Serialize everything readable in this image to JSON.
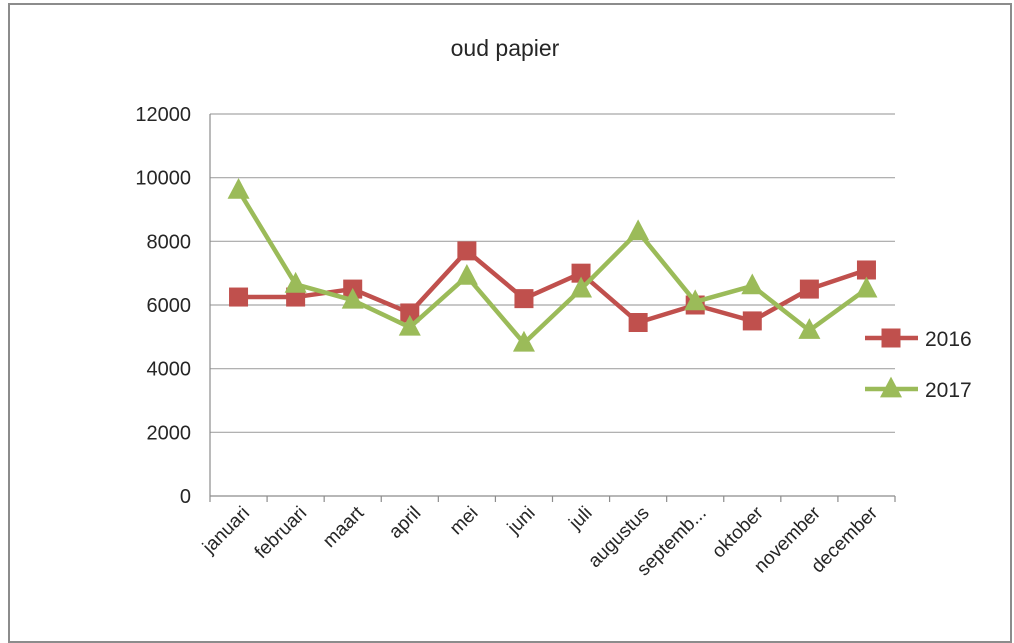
{
  "chart_data": {
    "type": "line",
    "title": "oud papier",
    "xlabel": "",
    "ylabel": "",
    "ylim": [
      0,
      12000
    ],
    "yticks": [
      "0",
      "2000",
      "4000",
      "6000",
      "8000",
      "10000",
      "12000"
    ],
    "categories": [
      "januari",
      "februari",
      "maart",
      "april",
      "mei",
      "juni",
      "juli",
      "augustus",
      "septemb...",
      "oktober",
      "november",
      "december"
    ],
    "series": [
      {
        "name": "2016",
        "marker": "square",
        "color": "#c0504d",
        "values": [
          6250,
          6250,
          6500,
          5750,
          7700,
          6200,
          7000,
          5450,
          6000,
          5500,
          6500,
          7100
        ]
      },
      {
        "name": "2017",
        "marker": "triangle",
        "color": "#9bbb59",
        "values": [
          9600,
          6650,
          6150,
          5300,
          6900,
          4800,
          6500,
          8300,
          6100,
          6600,
          5200,
          6500
        ]
      }
    ],
    "grid": true,
    "legend_position": "right"
  }
}
